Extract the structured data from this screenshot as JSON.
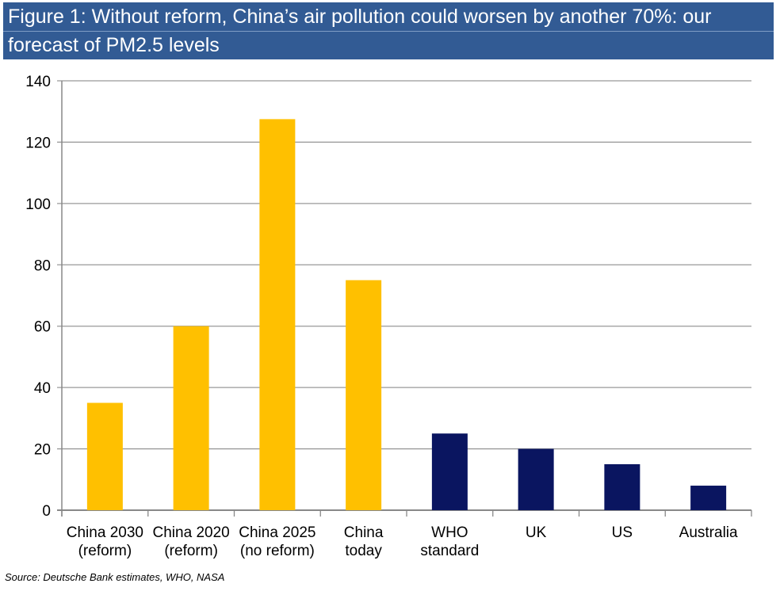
{
  "chart_data": {
    "type": "bar",
    "title": "Figure 1: Without reform, China’s air pollution could worsen by another 70%: our forecast of PM2.5 levels",
    "title_lines": [
      "Figure 1: Without reform, China’s air pollution could worsen by another 70%: our",
      "forecast of PM2.5 levels"
    ],
    "categories": [
      [
        "China 2030",
        "(reform)"
      ],
      [
        "China 2020",
        "(reform)"
      ],
      [
        "China 2025",
        "(no reform)"
      ],
      [
        "China",
        "today"
      ],
      [
        "WHO",
        "standard"
      ],
      [
        "UK"
      ],
      [
        "US"
      ],
      [
        "Australia"
      ]
    ],
    "values": [
      35,
      60,
      127.5,
      75,
      25,
      20,
      15,
      8
    ],
    "colors": [
      "#ffc000",
      "#ffc000",
      "#ffc000",
      "#ffc000",
      "#0a1560",
      "#0a1560",
      "#0a1560",
      "#0a1560"
    ],
    "ylim": [
      0,
      140
    ],
    "yticks": [
      0,
      20,
      40,
      60,
      80,
      100,
      120,
      140
    ],
    "xlabel": "",
    "ylabel": "",
    "grid": true,
    "legend": "none"
  },
  "source": "Source: Deutsche Bank estimates, WHO, NASA"
}
